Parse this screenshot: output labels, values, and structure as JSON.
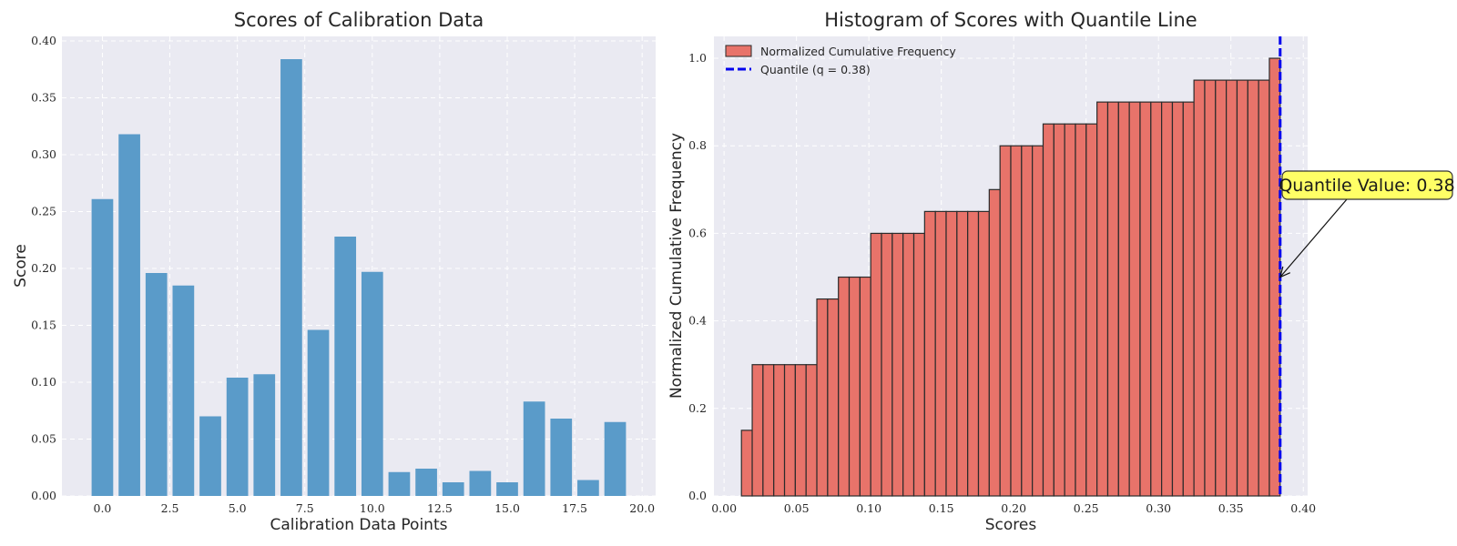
{
  "chart_data": [
    {
      "type": "bar",
      "title": "Scores of Calibration Data",
      "xlabel": "Calibration Data Points",
      "ylabel": "Score",
      "x": [
        0,
        1,
        2,
        3,
        4,
        5,
        6,
        7,
        8,
        9,
        10,
        11,
        12,
        13,
        14,
        15,
        16,
        17,
        18,
        19
      ],
      "values": [
        0.261,
        0.318,
        0.196,
        0.185,
        0.07,
        0.104,
        0.107,
        0.384,
        0.146,
        0.228,
        0.197,
        0.021,
        0.024,
        0.012,
        0.022,
        0.012,
        0.083,
        0.068,
        0.014,
        0.065
      ],
      "xlim": [
        -1.5,
        20.5
      ],
      "ylim": [
        0,
        0.404
      ],
      "xticks": [
        "0.0",
        "2.5",
        "5.0",
        "7.5",
        "10.0",
        "12.5",
        "15.0",
        "17.5",
        "20.0"
      ],
      "yticks": [
        "0.00",
        "0.05",
        "0.10",
        "0.15",
        "0.20",
        "0.25",
        "0.30",
        "0.35",
        "0.40"
      ],
      "color": "#5a9bc9",
      "grid": true
    },
    {
      "type": "bar",
      "title": "Histogram of Scores with Quantile Line",
      "xlabel": "Scores",
      "ylabel": "Normalized Cumulative Frequency",
      "bin_range": [
        0.012,
        0.384
      ],
      "bin_count": 50,
      "values": [
        0.15,
        0.3,
        0.3,
        0.3,
        0.3,
        0.3,
        0.3,
        0.45,
        0.45,
        0.5,
        0.5,
        0.5,
        0.6,
        0.6,
        0.6,
        0.6,
        0.6,
        0.65,
        0.65,
        0.65,
        0.65,
        0.65,
        0.65,
        0.7,
        0.8,
        0.8,
        0.8,
        0.8,
        0.85,
        0.85,
        0.85,
        0.85,
        0.85,
        0.9,
        0.9,
        0.9,
        0.9,
        0.9,
        0.9,
        0.9,
        0.9,
        0.9,
        0.95,
        0.95,
        0.95,
        0.95,
        0.95,
        0.95,
        0.95,
        1.0
      ],
      "xlim": [
        -0.007,
        0.403
      ],
      "ylim": [
        0,
        1.05
      ],
      "xticks": [
        "0.00",
        "0.05",
        "0.10",
        "0.15",
        "0.20",
        "0.25",
        "0.30",
        "0.35",
        "0.40"
      ],
      "yticks": [
        "0.0",
        "0.2",
        "0.4",
        "0.6",
        "0.8",
        "1.0"
      ],
      "color": "#e8736a",
      "edge_color": "#2b2b2b",
      "quantile": 0.384,
      "quantile_color": "#0000ee",
      "legend": {
        "position": "upper-left",
        "hist_label": "Normalized Cumulative Frequency",
        "line_label": "Quantile (q = 0.38)"
      },
      "annotation": {
        "text": "Quantile Value: 0.38",
        "point": [
          0.384,
          0.5
        ],
        "box_color": "#ffff66"
      },
      "grid": true
    }
  ]
}
